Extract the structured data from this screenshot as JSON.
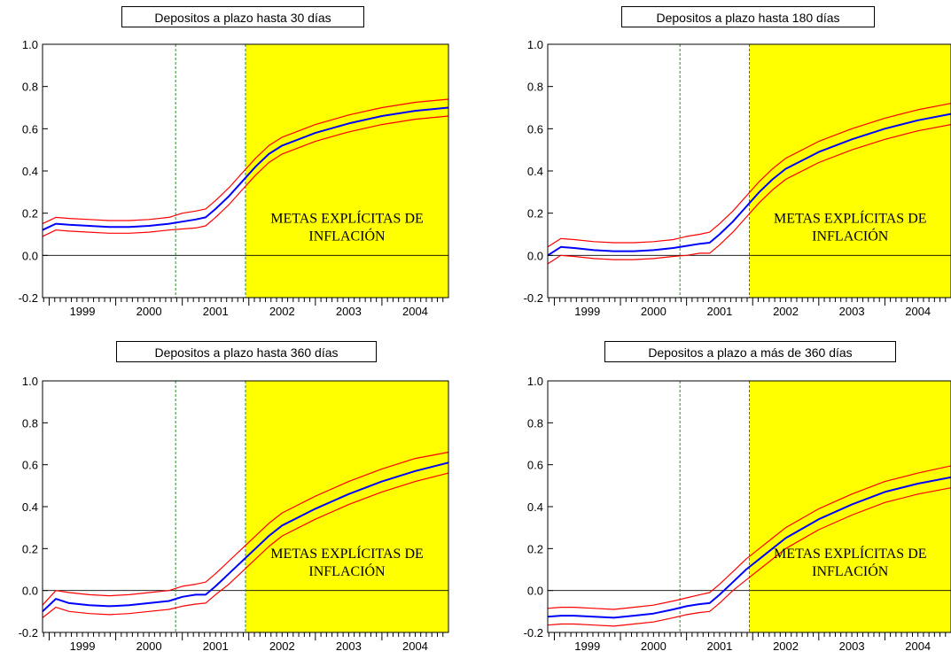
{
  "chart_data": [
    {
      "type": "line",
      "title": "Depositos a plazo hasta 30 días",
      "ylim": [
        -0.2,
        1.0
      ],
      "yticks": [
        "1.0",
        "0.8",
        "0.6",
        "0.4",
        "0.2",
        "0.0",
        "-0.2"
      ],
      "xticks": [
        "1999",
        "2000",
        "2001",
        "2002",
        "2003",
        "2004"
      ],
      "xlim": [
        1998.9,
        2005.0
      ],
      "vlines": [
        2000.9,
        2001.95
      ],
      "shaded_from": 2001.95,
      "region_label": [
        "METAS EXPLÍCITAS DE",
        "INFLACIÓN"
      ],
      "x": [
        1998.9,
        1999.1,
        1999.3,
        1999.6,
        1999.9,
        2000.2,
        2000.5,
        2000.8,
        2001.0,
        2001.2,
        2001.35,
        2001.5,
        2001.7,
        2001.9,
        2002.1,
        2002.3,
        2002.5,
        2003.0,
        2003.5,
        2004.0,
        2004.5,
        2005.0
      ],
      "series": [
        {
          "values": [
            0.12,
            0.15,
            0.145,
            0.14,
            0.135,
            0.135,
            0.14,
            0.15,
            0.16,
            0.17,
            0.18,
            0.22,
            0.28,
            0.35,
            0.42,
            0.48,
            0.52,
            0.58,
            0.625,
            0.66,
            0.685,
            0.7
          ],
          "color": "#0000ff"
        },
        {
          "values": [
            0.15,
            0.18,
            0.175,
            0.17,
            0.165,
            0.165,
            0.17,
            0.18,
            0.2,
            0.21,
            0.22,
            0.26,
            0.32,
            0.39,
            0.46,
            0.52,
            0.56,
            0.62,
            0.665,
            0.7,
            0.725,
            0.74
          ],
          "color": "#ff0000"
        },
        {
          "values": [
            0.09,
            0.12,
            0.115,
            0.11,
            0.105,
            0.105,
            0.11,
            0.12,
            0.125,
            0.13,
            0.14,
            0.18,
            0.24,
            0.31,
            0.38,
            0.44,
            0.48,
            0.54,
            0.585,
            0.62,
            0.645,
            0.66
          ],
          "color": "#ff0000"
        }
      ]
    },
    {
      "type": "line",
      "title": "Depositos a plazo hasta 180 días",
      "ylim": [
        -0.2,
        1.0
      ],
      "yticks": [
        "1.0",
        "0.8",
        "0.6",
        "0.4",
        "0.2",
        "0.0",
        "-0.2"
      ],
      "xticks": [
        "1999",
        "2000",
        "2001",
        "2002",
        "2003",
        "2004"
      ],
      "xlim": [
        1998.9,
        2005.0
      ],
      "vlines": [
        2000.9,
        2001.95
      ],
      "shaded_from": 2001.95,
      "region_label": [
        "METAS EXPLÍCITAS DE",
        "INFLACIÓN"
      ],
      "x": [
        1998.9,
        1999.1,
        1999.3,
        1999.6,
        1999.9,
        2000.2,
        2000.5,
        2000.8,
        2001.0,
        2001.2,
        2001.35,
        2001.5,
        2001.7,
        2001.9,
        2002.1,
        2002.3,
        2002.5,
        2003.0,
        2003.5,
        2004.0,
        2004.5,
        2005.0
      ],
      "series": [
        {
          "values": [
            0.0,
            0.04,
            0.035,
            0.025,
            0.02,
            0.02,
            0.025,
            0.035,
            0.045,
            0.055,
            0.06,
            0.1,
            0.16,
            0.23,
            0.3,
            0.36,
            0.41,
            0.49,
            0.55,
            0.6,
            0.64,
            0.67
          ],
          "color": "#0000ff"
        },
        {
          "values": [
            0.04,
            0.08,
            0.075,
            0.065,
            0.06,
            0.06,
            0.065,
            0.075,
            0.09,
            0.1,
            0.11,
            0.15,
            0.21,
            0.28,
            0.35,
            0.41,
            0.46,
            0.54,
            0.6,
            0.65,
            0.69,
            0.72
          ],
          "color": "#ff0000"
        },
        {
          "values": [
            -0.04,
            0.0,
            -0.005,
            -0.015,
            -0.02,
            -0.02,
            -0.015,
            -0.005,
            0.0,
            0.01,
            0.01,
            0.05,
            0.11,
            0.18,
            0.25,
            0.31,
            0.36,
            0.44,
            0.5,
            0.55,
            0.59,
            0.62
          ],
          "color": "#ff0000"
        }
      ]
    },
    {
      "type": "line",
      "title": "Depositos a plazo hasta 360 días",
      "ylim": [
        -0.2,
        1.0
      ],
      "yticks": [
        "1.0",
        "0.8",
        "0.6",
        "0.4",
        "0.2",
        "0.0",
        "-0.2"
      ],
      "xticks": [
        "1999",
        "2000",
        "2001",
        "2002",
        "2003",
        "2004"
      ],
      "xlim": [
        1998.9,
        2005.0
      ],
      "vlines": [
        2000.9,
        2001.95
      ],
      "shaded_from": 2001.95,
      "region_label": [
        "METAS EXPLÍCITAS DE",
        "INFLACIÓN"
      ],
      "x": [
        1998.9,
        1999.1,
        1999.3,
        1999.6,
        1999.9,
        2000.2,
        2000.5,
        2000.8,
        2001.0,
        2001.2,
        2001.35,
        2001.5,
        2001.7,
        2001.9,
        2002.1,
        2002.3,
        2002.5,
        2003.0,
        2003.5,
        2004.0,
        2004.5,
        2005.0
      ],
      "series": [
        {
          "values": [
            -0.1,
            -0.04,
            -0.06,
            -0.07,
            -0.075,
            -0.07,
            -0.06,
            -0.05,
            -0.03,
            -0.02,
            -0.02,
            0.02,
            0.08,
            0.14,
            0.2,
            0.26,
            0.31,
            0.39,
            0.46,
            0.52,
            0.57,
            0.61
          ],
          "color": "#0000ff"
        },
        {
          "values": [
            -0.07,
            0.0,
            -0.01,
            -0.02,
            -0.025,
            -0.02,
            -0.01,
            0.0,
            0.02,
            0.03,
            0.04,
            0.08,
            0.14,
            0.2,
            0.26,
            0.32,
            0.37,
            0.45,
            0.52,
            0.58,
            0.63,
            0.66
          ],
          "color": "#ff0000"
        },
        {
          "values": [
            -0.13,
            -0.08,
            -0.1,
            -0.11,
            -0.115,
            -0.11,
            -0.1,
            -0.09,
            -0.075,
            -0.065,
            -0.06,
            -0.02,
            0.03,
            0.09,
            0.15,
            0.21,
            0.26,
            0.34,
            0.41,
            0.47,
            0.52,
            0.56
          ],
          "color": "#ff0000"
        }
      ]
    },
    {
      "type": "line",
      "title": "Depositos a plazo a más de 360 días",
      "ylim": [
        -0.2,
        1.0
      ],
      "yticks": [
        "1.0",
        "0.8",
        "0.6",
        "0.4",
        "0.2",
        "0.0",
        "-0.2"
      ],
      "xticks": [
        "1999",
        "2000",
        "2001",
        "2002",
        "2003",
        "2004"
      ],
      "xlim": [
        1998.9,
        2005.0
      ],
      "vlines": [
        2000.9,
        2001.95
      ],
      "shaded_from": 2001.95,
      "region_label": [
        "METAS EXPLÍCITAS DE",
        "INFLACIÓN"
      ],
      "x": [
        1998.9,
        1999.1,
        1999.3,
        1999.6,
        1999.9,
        2000.2,
        2000.5,
        2000.8,
        2001.0,
        2001.2,
        2001.35,
        2001.5,
        2001.7,
        2001.9,
        2002.1,
        2002.3,
        2002.5,
        2003.0,
        2003.5,
        2004.0,
        2004.5,
        2005.0
      ],
      "series": [
        {
          "values": [
            -0.125,
            -0.12,
            -0.12,
            -0.125,
            -0.13,
            -0.12,
            -0.11,
            -0.09,
            -0.075,
            -0.065,
            -0.06,
            -0.02,
            0.04,
            0.1,
            0.15,
            0.2,
            0.25,
            0.34,
            0.41,
            0.47,
            0.51,
            0.54
          ],
          "color": "#0000ff"
        },
        {
          "values": [
            -0.085,
            -0.08,
            -0.08,
            -0.085,
            -0.09,
            -0.08,
            -0.07,
            -0.05,
            -0.035,
            -0.02,
            -0.01,
            0.03,
            0.09,
            0.15,
            0.2,
            0.25,
            0.3,
            0.39,
            0.46,
            0.52,
            0.56,
            0.595
          ],
          "color": "#ff0000"
        },
        {
          "values": [
            -0.165,
            -0.16,
            -0.16,
            -0.165,
            -0.17,
            -0.16,
            -0.15,
            -0.13,
            -0.115,
            -0.105,
            -0.1,
            -0.06,
            0.0,
            0.05,
            0.1,
            0.15,
            0.2,
            0.29,
            0.36,
            0.42,
            0.46,
            0.49
          ],
          "color": "#ff0000"
        }
      ]
    }
  ]
}
